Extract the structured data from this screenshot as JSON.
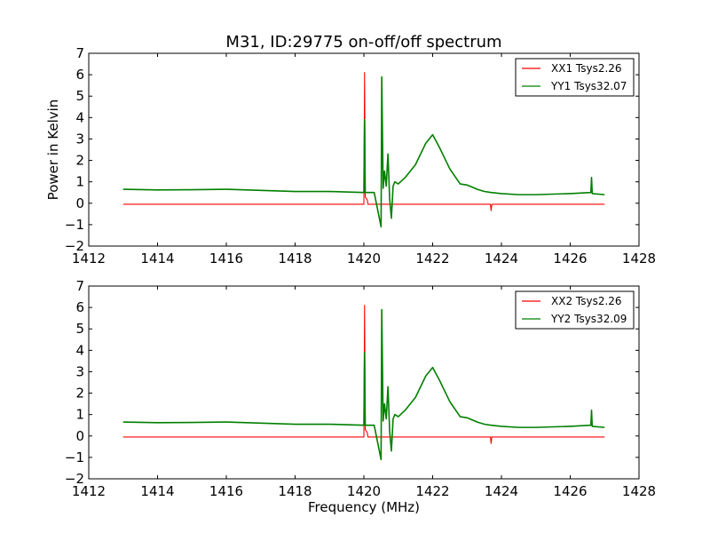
{
  "chart_data": [
    {
      "type": "line",
      "title": "M31, ID:29775 on-off/off spectrum",
      "xlabel": "",
      "ylabel": "Power in Kelvin",
      "xlim": [
        1412,
        1428
      ],
      "ylim": [
        -2,
        7
      ],
      "xticks": [
        "1412",
        "1414",
        "1416",
        "1418",
        "1420",
        "1422",
        "1424",
        "1426",
        "1428"
      ],
      "yticks": [
        "−2",
        "−1",
        "0",
        "1",
        "2",
        "3",
        "4",
        "5",
        "6",
        "7"
      ],
      "legend_position": "top-right",
      "series": [
        {
          "name": "XX1 Tsys2.26",
          "color": "#ff0000",
          "x": [
            1413.0,
            1420.0,
            1420.02,
            1420.04,
            1420.1,
            1420.12,
            1423.68,
            1423.7,
            1423.72,
            1427.0
          ],
          "y": [
            -0.05,
            -0.05,
            6.1,
            0.3,
            0.15,
            -0.05,
            -0.05,
            -0.35,
            -0.05,
            -0.05
          ]
        },
        {
          "name": "YY1 Tsys32.07",
          "color": "#008000",
          "x": [
            1413.0,
            1414.0,
            1415.0,
            1416.0,
            1417.0,
            1418.0,
            1419.0,
            1420.0,
            1420.02,
            1420.04,
            1420.3,
            1420.5,
            1420.52,
            1420.56,
            1420.6,
            1420.65,
            1420.7,
            1420.75,
            1420.8,
            1420.85,
            1420.9,
            1421.0,
            1421.2,
            1421.5,
            1421.8,
            1422.0,
            1422.2,
            1422.5,
            1422.8,
            1423.0,
            1423.3,
            1423.5,
            1423.7,
            1424.0,
            1424.5,
            1425.0,
            1426.0,
            1426.6,
            1426.62,
            1426.64,
            1427.0
          ],
          "y": [
            0.65,
            0.62,
            0.63,
            0.65,
            0.6,
            0.55,
            0.55,
            0.5,
            3.9,
            0.5,
            0.5,
            -1.1,
            5.9,
            0.7,
            1.5,
            0.8,
            2.3,
            0.2,
            -0.7,
            0.8,
            1.0,
            0.9,
            1.2,
            1.8,
            2.8,
            3.2,
            2.6,
            1.6,
            0.9,
            0.85,
            0.65,
            0.55,
            0.5,
            0.45,
            0.4,
            0.4,
            0.45,
            0.5,
            1.2,
            0.45,
            0.4
          ]
        }
      ]
    },
    {
      "type": "line",
      "title": "",
      "xlabel": "Frequency (MHz)",
      "ylabel": "",
      "xlim": [
        1412,
        1428
      ],
      "ylim": [
        -2,
        7
      ],
      "xticks": [
        "1412",
        "1414",
        "1416",
        "1418",
        "1420",
        "1422",
        "1424",
        "1426",
        "1428"
      ],
      "yticks": [
        "−2",
        "−1",
        "0",
        "1",
        "2",
        "3",
        "4",
        "5",
        "6",
        "7"
      ],
      "legend_position": "top-right",
      "series": [
        {
          "name": "XX2 Tsys2.26",
          "color": "#ff0000",
          "x": [
            1413.0,
            1420.0,
            1420.02,
            1420.04,
            1420.1,
            1420.12,
            1423.68,
            1423.7,
            1423.72,
            1427.0
          ],
          "y": [
            -0.05,
            -0.05,
            6.1,
            0.3,
            0.15,
            -0.05,
            -0.05,
            -0.35,
            -0.05,
            -0.05
          ]
        },
        {
          "name": "YY2 Tsys32.09",
          "color": "#008000",
          "x": [
            1413.0,
            1414.0,
            1415.0,
            1416.0,
            1417.0,
            1418.0,
            1419.0,
            1420.0,
            1420.02,
            1420.04,
            1420.3,
            1420.5,
            1420.52,
            1420.56,
            1420.6,
            1420.65,
            1420.7,
            1420.75,
            1420.8,
            1420.85,
            1420.9,
            1421.0,
            1421.2,
            1421.5,
            1421.8,
            1422.0,
            1422.2,
            1422.5,
            1422.8,
            1423.0,
            1423.3,
            1423.5,
            1423.7,
            1424.0,
            1424.5,
            1425.0,
            1426.0,
            1426.6,
            1426.62,
            1426.64,
            1427.0
          ],
          "y": [
            0.65,
            0.62,
            0.63,
            0.65,
            0.6,
            0.55,
            0.55,
            0.5,
            3.9,
            0.5,
            0.5,
            -1.1,
            5.9,
            0.7,
            1.5,
            0.8,
            2.3,
            0.2,
            -0.7,
            0.8,
            1.0,
            0.9,
            1.2,
            1.8,
            2.8,
            3.2,
            2.6,
            1.6,
            0.9,
            0.85,
            0.65,
            0.55,
            0.5,
            0.45,
            0.4,
            0.4,
            0.45,
            0.5,
            1.2,
            0.45,
            0.4
          ]
        }
      ]
    }
  ]
}
